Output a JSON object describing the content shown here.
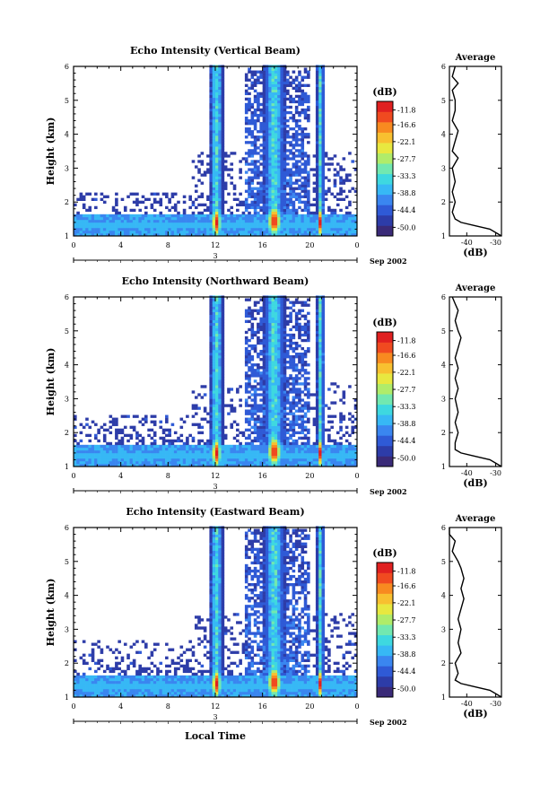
{
  "panels": [
    {
      "title": "Echo Intensity (Vertical Beam)"
    },
    {
      "title": "Echo Intensity (Northward Beam)"
    },
    {
      "title": "Echo Intensity (Eastward Beam)"
    }
  ],
  "month_labels": [
    "Sep 2002",
    "Sep 2002",
    "Sep 2002"
  ],
  "y_label": "Height (km)",
  "x_label": "Local Time",
  "average_title": "Average",
  "colorbar_unit": "(dB)",
  "average_xlabel": "(dB)",
  "day_label": "3",
  "chart_data": {
    "type": "heatmap",
    "x_ticks": [
      "0",
      "4",
      "8",
      "12",
      "16",
      "20",
      "0"
    ],
    "y_ticks": [
      "1",
      "2",
      "3",
      "4",
      "5",
      "6"
    ],
    "xlim": [
      0,
      24
    ],
    "ylim": [
      1,
      6
    ],
    "xlabel": "Local Time",
    "ylabel": "Height (km)",
    "colorbar": {
      "unit": "(dB)",
      "ticks": [
        "-11.8",
        "-16.6",
        "-22.1",
        "-27.7",
        "-33.3",
        "-38.8",
        "-44.4",
        "-50.0"
      ],
      "range": [
        -52.8,
        -9.0
      ],
      "colors": [
        "#3a2a78",
        "#2d3ca8",
        "#2f5ad6",
        "#3a86f0",
        "#37b8f5",
        "#3ed8e0",
        "#72e8b0",
        "#b0ec6a",
        "#e8e840",
        "#f8c030",
        "#f88a20",
        "#f04a20",
        "#e02020"
      ]
    },
    "average_profile": {
      "xlim": [
        -46,
        -28
      ],
      "x_ticks": [
        -40,
        -30
      ],
      "panels": [
        {
          "height": [
            1.0,
            1.2,
            1.3,
            1.4,
            1.5,
            1.7,
            2.0,
            2.3,
            2.6,
            3.0,
            3.3,
            3.5,
            3.8,
            4.1,
            4.4,
            4.7,
            5.0,
            5.3,
            5.5,
            5.7,
            6.0
          ],
          "db": [
            -28,
            -32,
            -37,
            -42,
            -44,
            -45,
            -44,
            -45,
            -44,
            -45,
            -43,
            -45,
            -44,
            -43,
            -45,
            -44,
            -44,
            -45,
            -43,
            -45,
            -44
          ]
        },
        {
          "height": [
            1.0,
            1.2,
            1.3,
            1.4,
            1.5,
            1.7,
            2.0,
            2.3,
            2.6,
            3.0,
            3.3,
            3.6,
            3.9,
            4.2,
            4.5,
            4.8,
            5.0,
            5.3,
            5.6,
            5.8,
            6.0
          ],
          "db": [
            -28,
            -32,
            -37,
            -42,
            -44,
            -44,
            -43,
            -44,
            -43,
            -44,
            -43,
            -44,
            -43,
            -44,
            -43,
            -42,
            -43,
            -44,
            -43,
            -44,
            -45
          ]
        },
        {
          "height": [
            1.0,
            1.2,
            1.3,
            1.4,
            1.5,
            1.7,
            2.0,
            2.3,
            2.6,
            3.0,
            3.3,
            3.6,
            3.9,
            4.2,
            4.5,
            4.8,
            5.0,
            5.3,
            5.6,
            5.8,
            6.0
          ],
          "db": [
            -28,
            -32,
            -37,
            -42,
            -44,
            -43,
            -44,
            -42,
            -43,
            -42,
            -43,
            -42,
            -41,
            -42,
            -41,
            -42,
            -43,
            -45,
            -44,
            -46,
            -46
          ]
        }
      ]
    },
    "features": {
      "boundary_layer_top_km": 1.6,
      "convective_columns_local_time": [
        12,
        17,
        21
      ],
      "peak_intensity_db": -11.8
    }
  }
}
